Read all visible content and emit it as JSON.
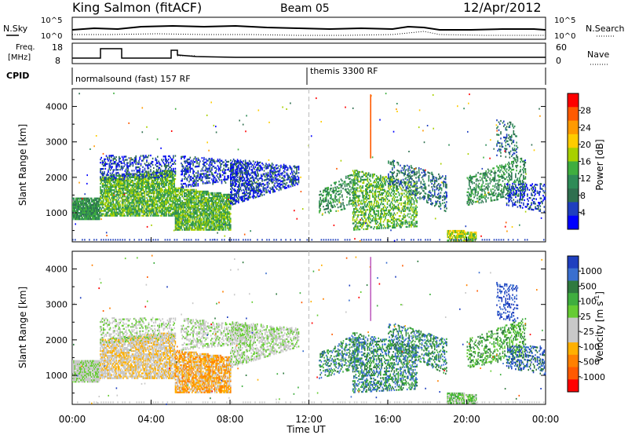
{
  "header": {
    "station": "King Salmon (fitACF)",
    "beam": "Beam 05",
    "date": "12/Apr/2012"
  },
  "noise_panel": {
    "left_label": "N.Sky",
    "right_label": "N.Search",
    "left_ticks": [
      "10^5",
      "10^0"
    ],
    "right_ticks": [
      "10^5",
      "10^0"
    ]
  },
  "freq_panel": {
    "left_label_1": "Freq.",
    "left_label_2": "[MHz]",
    "left_ticks": [
      "18",
      "8"
    ],
    "right_label": "Nave",
    "right_ticks": [
      "60",
      "0"
    ]
  },
  "cpid": {
    "label": "CPID",
    "segments": [
      {
        "label": "normalsound (fast) 157 RF",
        "start": "00:00",
        "end": "12:00"
      },
      {
        "label": "themis 3300 RF",
        "start": "12:00",
        "end": "24:00"
      }
    ]
  },
  "chart_data": [
    {
      "type": "heatmap",
      "quantity": "Power",
      "ylabel": "Slant Range [km]",
      "ylim": [
        180,
        4500
      ],
      "yticks": [
        1000,
        2000,
        3000,
        4000
      ],
      "colorbar": {
        "label": "Power [dB]",
        "ticks": [
          "28",
          "24",
          "20",
          "16",
          "12",
          "8",
          "4"
        ],
        "colors": [
          "#ff0000",
          "#ff5a00",
          "#ff9a00",
          "#ffcc00",
          "#a8d000",
          "#3fae3f",
          "#2e8b57",
          "#2f6f4f",
          "#1f3fbf",
          "#0000ff"
        ]
      }
    },
    {
      "type": "heatmap",
      "quantity": "Velocity",
      "ylabel": "Slant Range [km]",
      "ylim": [
        180,
        4500
      ],
      "yticks": [
        1000,
        2000,
        3000,
        4000
      ],
      "colorbar": {
        "label": "Velocity [m s",
        "label_sup": "-1",
        "label_end": "]",
        "ticks": [
          "1000",
          "500",
          "100",
          "25",
          "-25",
          "-100",
          "-500",
          "-1000"
        ],
        "colors": [
          "#1f3fbf",
          "#3a6fcf",
          "#2f7a3f",
          "#3fae3f",
          "#66cc33",
          "#c8c8c8",
          "#c8c8c8",
          "#ffb000",
          "#ff8000",
          "#ff5a00",
          "#ff0000"
        ]
      }
    }
  ],
  "xaxis": {
    "label": "Time UT",
    "ticks": [
      "00:00",
      "04:00",
      "08:00",
      "12:00",
      "16:00",
      "20:00",
      "00:00"
    ]
  }
}
